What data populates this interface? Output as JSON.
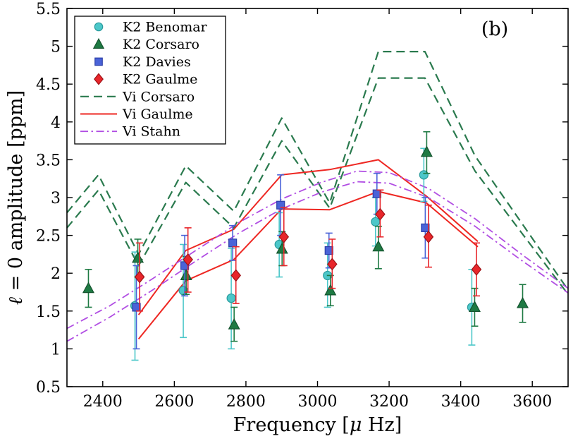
{
  "chart_data": {
    "type": "scatter",
    "title": "",
    "annotation": "(b)",
    "xlabel": "Frequency [μ Hz]",
    "ylabel": "ℓ = 0 amplitude [ppm]",
    "xlim": [
      2300,
      3700
    ],
    "ylim": [
      0.5,
      5.5
    ],
    "xticks": [
      2400,
      2600,
      2800,
      3000,
      3200,
      3400,
      3600
    ],
    "yticks": [
      0.5,
      1,
      1.5,
      2,
      2.5,
      3,
      3.5,
      4,
      4.5,
      5,
      5.5
    ],
    "grid": false,
    "legend_position": "top-left",
    "frame_color": "#000000",
    "background_color": "#ffffff",
    "scatter_series": [
      {
        "name": "K2 Benomar",
        "marker": "circle",
        "color": "#4cc7c9",
        "edge": "#2a9b9d",
        "x": [
          2490,
          2625,
          2759,
          2893,
          3028,
          3162,
          3297,
          3431
        ],
        "y": [
          1.57,
          1.77,
          1.67,
          2.38,
          1.97,
          2.68,
          3.3,
          1.55
        ],
        "ylo": [
          0.85,
          1.15,
          1.0,
          1.95,
          1.55,
          2.36,
          2.95,
          1.05
        ],
        "yhi": [
          2.28,
          2.38,
          2.33,
          2.8,
          2.4,
          3.0,
          3.65,
          2.05
        ]
      },
      {
        "name": "K2 Corsaro",
        "marker": "triangle",
        "color": "#1e7a43",
        "edge": "#14532e",
        "x": [
          2360,
          2498,
          2633,
          2767,
          2901,
          3036,
          3170,
          3305,
          3439,
          3573
        ],
        "y": [
          1.8,
          2.2,
          1.97,
          1.32,
          2.32,
          1.77,
          2.35,
          3.6,
          1.55,
          1.6
        ],
        "ylo": [
          1.55,
          1.95,
          1.72,
          1.1,
          2.1,
          1.57,
          2.06,
          3.32,
          1.3,
          1.35
        ],
        "yhi": [
          2.05,
          2.45,
          2.22,
          1.55,
          2.55,
          1.97,
          2.62,
          3.87,
          1.8,
          1.85
        ]
      },
      {
        "name": "K2 Davies",
        "marker": "square",
        "color": "#4a63d8",
        "edge": "#2c3fa8",
        "x": [
          2494,
          2629,
          2763,
          2897,
          3032,
          3166,
          3301
        ],
        "y": [
          1.55,
          2.1,
          2.4,
          2.9,
          2.3,
          3.05,
          2.6
        ],
        "ylo": [
          1.0,
          1.7,
          2.17,
          2.5,
          2.07,
          2.78,
          2.2
        ],
        "yhi": [
          2.1,
          2.5,
          2.63,
          3.3,
          2.53,
          3.32,
          3.0
        ]
      },
      {
        "name": "K2 Gaulme",
        "marker": "diamond",
        "color": "#e8262b",
        "edge": "#9e1216",
        "x": [
          2503,
          2638,
          2772,
          2906,
          3041,
          3175,
          3310,
          3444
        ],
        "y": [
          1.95,
          2.18,
          1.97,
          2.48,
          2.12,
          2.78,
          2.48,
          2.05
        ],
        "ylo": [
          1.5,
          1.75,
          1.6,
          2.1,
          1.8,
          2.48,
          2.08,
          1.7
        ],
        "yhi": [
          2.4,
          2.6,
          2.35,
          2.87,
          2.45,
          3.1,
          2.9,
          2.4
        ]
      }
    ],
    "line_series": [
      {
        "name": "Vi Corsaro",
        "style": "dashed",
        "color": "#2a7a4e",
        "width": 2.2,
        "lines": [
          {
            "x": [
              2300,
              2388,
              2500,
              2632,
              2766,
              2900,
              3034,
              3170,
              3300,
              3440,
              3700
            ],
            "y": [
              2.8,
              3.3,
              2.25,
              3.42,
              2.82,
              4.05,
              2.93,
              4.93,
              4.93,
              3.55,
              1.78
            ]
          },
          {
            "x": [
              2300,
              2388,
              2500,
              2632,
              2766,
              2900,
              3034,
              3170,
              3300,
              3440,
              3700
            ],
            "y": [
              2.6,
              3.1,
              2.1,
              3.2,
              2.6,
              3.75,
              2.86,
              4.58,
              4.58,
              3.35,
              1.72
            ]
          }
        ]
      },
      {
        "name": "Vi Gaulme",
        "style": "solid",
        "color": "#ee2722",
        "width": 2,
        "lines": [
          {
            "x": [
              2500,
              2632,
              2766,
              2900,
              3034,
              3170,
              3304,
              3448
            ],
            "y": [
              1.45,
              2.3,
              2.58,
              3.3,
              3.37,
              3.5,
              3.02,
              2.42
            ]
          },
          {
            "x": [
              2500,
              2632,
              2766,
              2900,
              3034,
              3170,
              3304,
              3448
            ],
            "y": [
              1.13,
              1.9,
              2.18,
              2.85,
              2.84,
              3.08,
              2.93,
              2.35
            ]
          }
        ]
      },
      {
        "name": "Vi Stahn",
        "style": "dashdot",
        "color": "#b14ee3",
        "width": 1.8,
        "lines": [
          {
            "x": [
              2300,
              2420,
              2540,
              2660,
              2780,
              2900,
              3010,
              3110,
              3200,
              3310,
              3440,
              3570,
              3700
            ],
            "y": [
              1.27,
              1.57,
              1.93,
              2.3,
              2.67,
              2.98,
              3.2,
              3.35,
              3.33,
              3.12,
              2.72,
              2.25,
              1.8
            ]
          },
          {
            "x": [
              2300,
              2420,
              2540,
              2660,
              2780,
              2900,
              3010,
              3110,
              3200,
              3310,
              3440,
              3570,
              3700
            ],
            "y": [
              1.1,
              1.42,
              1.78,
              2.16,
              2.53,
              2.85,
              3.07,
              3.21,
              3.19,
              3.0,
              2.62,
              2.17,
              1.74
            ]
          }
        ]
      }
    ],
    "legend": [
      "K2 Benomar",
      "K2 Corsaro",
      "K2 Davies",
      "K2 Gaulme",
      "Vi Corsaro",
      "Vi Gaulme",
      "Vi Stahn"
    ]
  }
}
